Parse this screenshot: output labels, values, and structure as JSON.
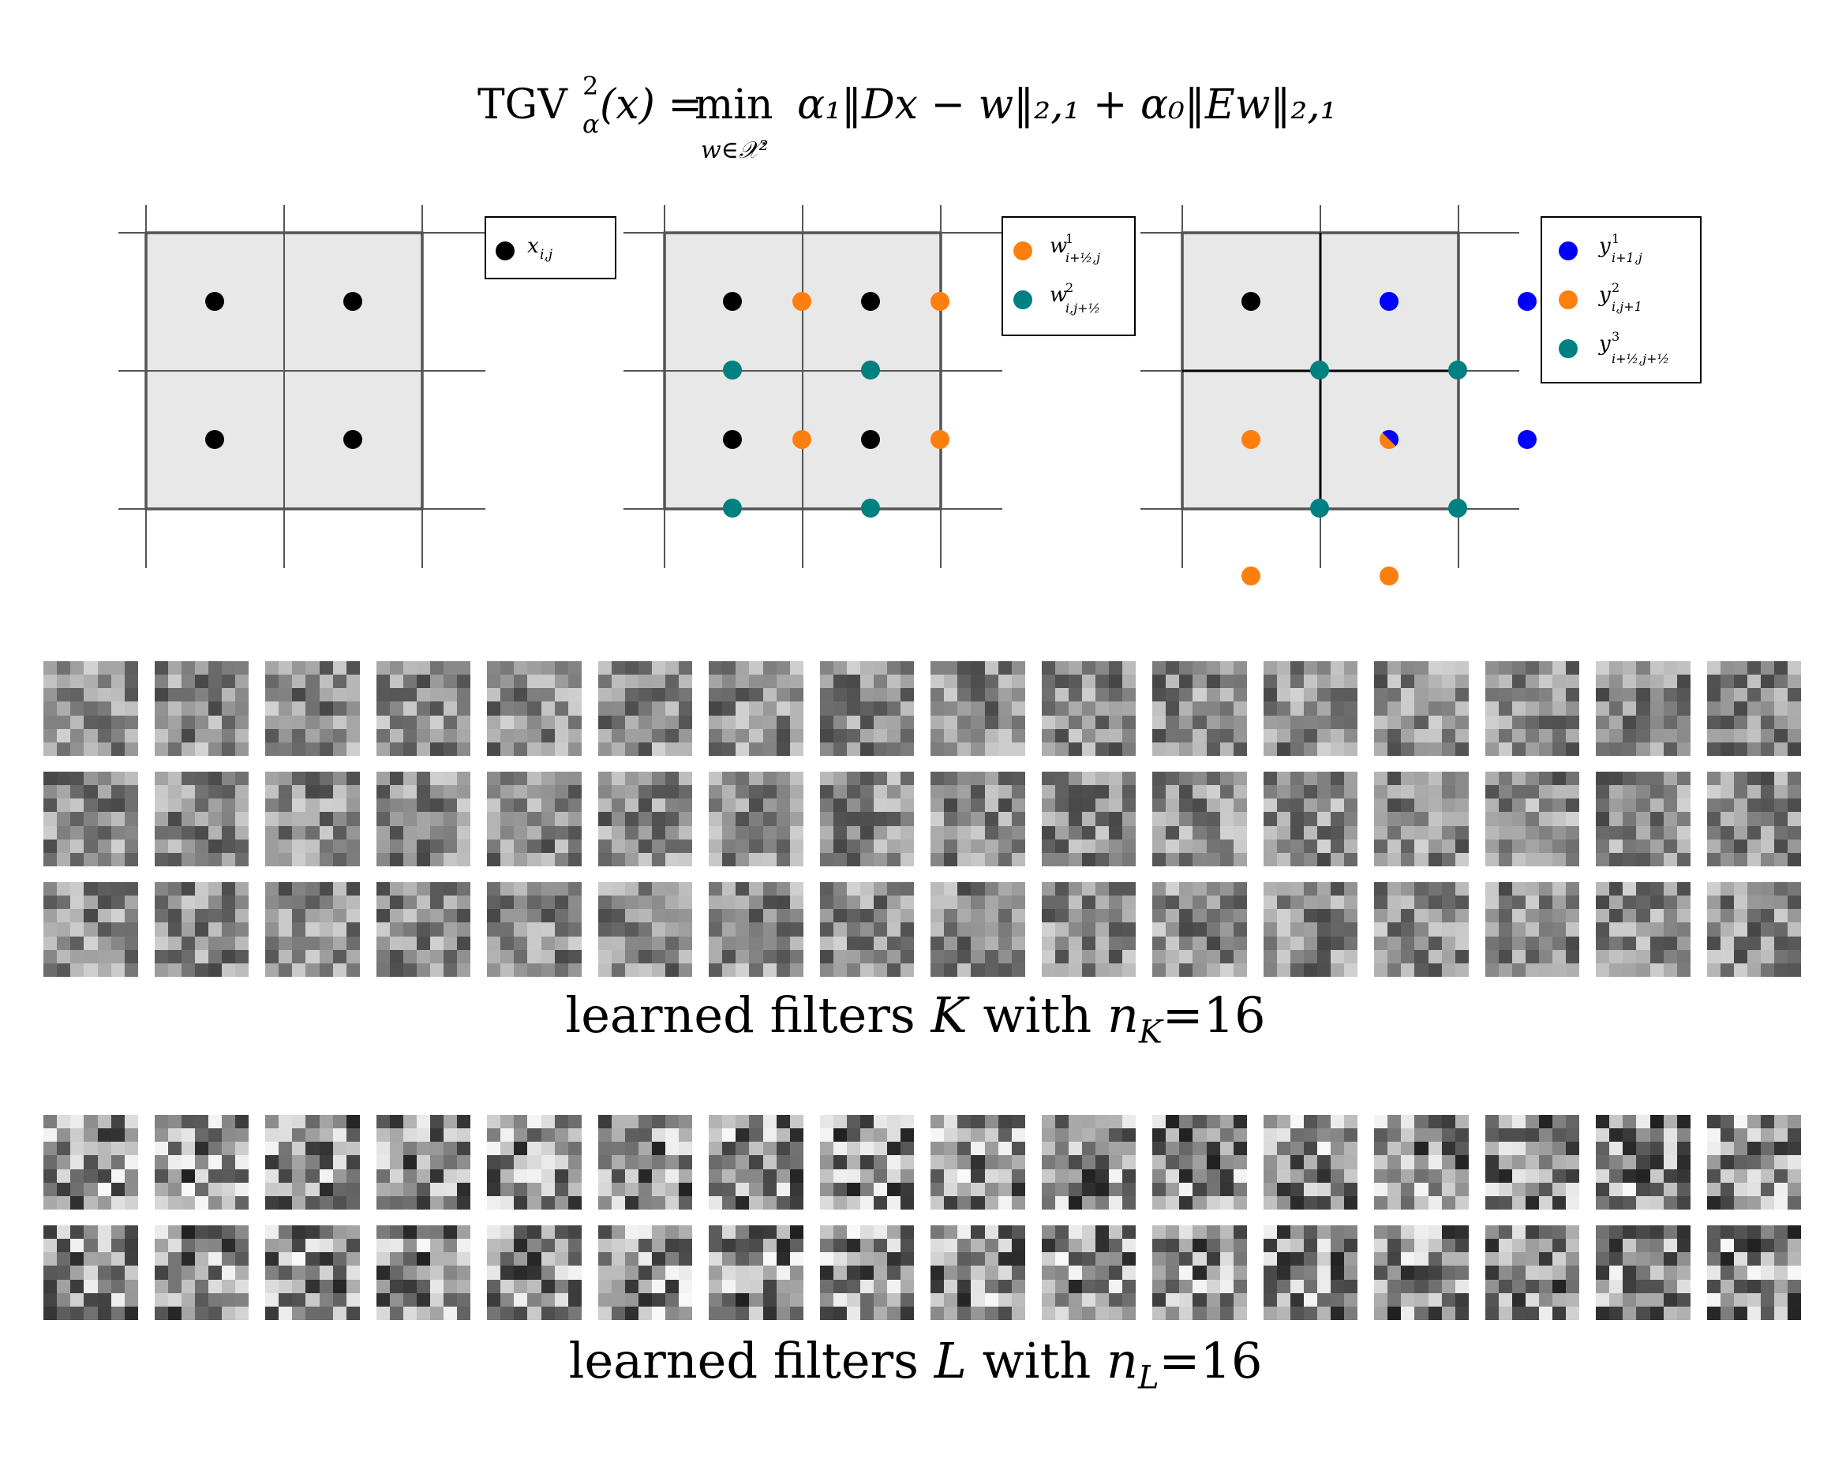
{
  "formula": {
    "lhs": "TGV",
    "lhs_sup": "2",
    "lhs_sub": "α",
    "lhs_arg": "(x) =",
    "min_word": "min",
    "min_under": "w∈𝒳²",
    "rhs": "α₁‖Dx − w‖₂,₁ + α₀‖Ew‖₂,₁"
  },
  "panels": [
    {
      "legend": [
        {
          "label": "x",
          "sub": "i,j",
          "sup": "",
          "color": "#000000"
        }
      ]
    },
    {
      "legend": [
        {
          "label": "w",
          "sup": "1",
          "sub": "i+½,j",
          "color": "#ff7f0e"
        },
        {
          "label": "w",
          "sup": "2",
          "sub": "i,j+½",
          "color": "#008080"
        }
      ]
    },
    {
      "legend": [
        {
          "label": "y",
          "sup": "1",
          "sub": "i+1,j",
          "color": "#0000ff"
        },
        {
          "label": "y",
          "sup": "2",
          "sub": "i,j+1",
          "color": "#ff7f0e"
        },
        {
          "label": "y",
          "sup": "3",
          "sub": "i+½,j+½",
          "color": "#008080"
        }
      ]
    }
  ],
  "colors": {
    "black_dot": "#000000",
    "orange": "#ff7f0e",
    "teal": "#008080",
    "blue": "#0000ff",
    "panel_fill": "#e8e8e8"
  },
  "filters_k": {
    "caption_prefix": "learned filters ",
    "caption_symbol": "K",
    "caption_mid": " with ",
    "caption_n": "n",
    "caption_sub": "K",
    "caption_value": "=16",
    "rows": 3,
    "cols": 16
  },
  "filters_l": {
    "caption_prefix": "learned filters ",
    "caption_symbol": "L",
    "caption_mid": " with ",
    "caption_n": "n",
    "caption_sub": "L",
    "caption_value": "=16",
    "rows": 2,
    "cols": 16
  }
}
